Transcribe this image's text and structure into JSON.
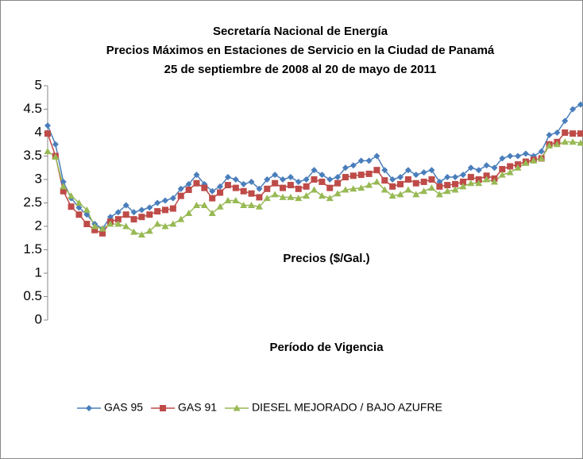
{
  "chart_data": {
    "type": "line",
    "title": [
      "Secretaría  Nacional de Energía",
      "Precios Máximos en Estaciones de Servicio en la Ciudad de Panamá",
      "25 de septiembre de 2008 al 20 de mayo de 2011"
    ],
    "y_label": "Precios ($/Gal.)",
    "x_label": "Período de Vigencia",
    "categories": [
      null,
      null,
      null,
      null,
      null,
      null,
      null,
      null,
      null,
      null,
      null,
      null,
      null,
      null,
      null,
      null,
      null,
      null,
      null,
      null,
      null,
      null,
      null,
      null,
      null,
      null,
      null,
      null,
      null,
      null,
      null,
      null,
      null,
      null,
      null,
      null,
      null,
      null,
      null,
      null,
      null,
      null,
      null,
      null,
      null,
      null,
      null,
      null,
      null,
      null,
      null,
      null,
      null,
      null,
      null,
      null,
      null,
      null,
      null,
      null,
      null,
      null,
      null,
      null,
      null,
      null,
      null,
      null,
      null
    ],
    "ylim": [
      0,
      5
    ],
    "yticks": [
      0,
      0.5,
      1,
      1.5,
      2,
      2.5,
      3,
      3.5,
      4,
      4.5,
      5
    ],
    "grid": false,
    "legend": "bottom",
    "series": [
      {
        "name": "GAS 95",
        "color": "#4a7ebb",
        "marker": "diamond",
        "values": [
          4.15,
          3.75,
          2.95,
          2.6,
          2.4,
          2.25,
          2.05,
          1.95,
          2.2,
          2.3,
          2.45,
          2.3,
          2.35,
          2.4,
          2.5,
          2.55,
          2.6,
          2.8,
          2.9,
          3.1,
          2.9,
          2.75,
          2.85,
          3.05,
          3.0,
          2.9,
          2.95,
          2.8,
          3.0,
          3.1,
          3.0,
          3.05,
          2.95,
          3.0,
          3.2,
          3.1,
          3.0,
          3.05,
          3.25,
          3.3,
          3.4,
          3.4,
          3.5,
          3.2,
          3.0,
          3.05,
          3.2,
          3.1,
          3.15,
          3.2,
          2.95,
          3.05,
          3.05,
          3.1,
          3.25,
          3.2,
          3.3,
          3.25,
          3.45,
          3.5,
          3.5,
          3.55,
          3.5,
          3.6,
          3.95,
          4.0,
          4.25,
          4.5,
          4.6
        ]
      },
      {
        "name": "GAS 91",
        "color": "#be4b48",
        "marker": "square",
        "values": [
          3.98,
          3.5,
          2.75,
          2.42,
          2.25,
          2.05,
          1.92,
          1.85,
          2.1,
          2.15,
          2.25,
          2.15,
          2.2,
          2.25,
          2.32,
          2.35,
          2.38,
          2.65,
          2.78,
          2.92,
          2.82,
          2.6,
          2.72,
          2.88,
          2.82,
          2.75,
          2.7,
          2.62,
          2.8,
          2.92,
          2.82,
          2.88,
          2.8,
          2.85,
          3.0,
          2.95,
          2.82,
          2.92,
          3.05,
          3.08,
          3.1,
          3.12,
          3.2,
          2.98,
          2.85,
          2.9,
          3.0,
          2.92,
          2.95,
          3.0,
          2.85,
          2.88,
          2.9,
          2.95,
          3.05,
          3.0,
          3.08,
          3.02,
          3.22,
          3.28,
          3.32,
          3.38,
          3.42,
          3.45,
          3.75,
          3.8,
          4.0,
          3.98,
          3.98
        ]
      },
      {
        "name": "DIESEL MEJORADO / BAJO AZUFRE",
        "color": "#98b954",
        "marker": "triangle",
        "values": [
          3.6,
          3.48,
          2.85,
          2.65,
          2.5,
          2.35,
          2.0,
          1.95,
          2.05,
          2.05,
          2.0,
          1.88,
          1.82,
          1.9,
          2.05,
          2.0,
          2.05,
          2.15,
          2.28,
          2.45,
          2.45,
          2.28,
          2.42,
          2.55,
          2.55,
          2.45,
          2.45,
          2.42,
          2.6,
          2.68,
          2.62,
          2.62,
          2.6,
          2.65,
          2.78,
          2.65,
          2.6,
          2.7,
          2.78,
          2.8,
          2.82,
          2.88,
          2.95,
          2.78,
          2.65,
          2.68,
          2.78,
          2.68,
          2.75,
          2.82,
          2.68,
          2.75,
          2.78,
          2.85,
          2.92,
          2.92,
          3.0,
          2.95,
          3.1,
          3.15,
          3.25,
          3.35,
          3.4,
          3.45,
          3.72,
          3.75,
          3.8,
          3.8,
          3.78
        ]
      }
    ]
  }
}
